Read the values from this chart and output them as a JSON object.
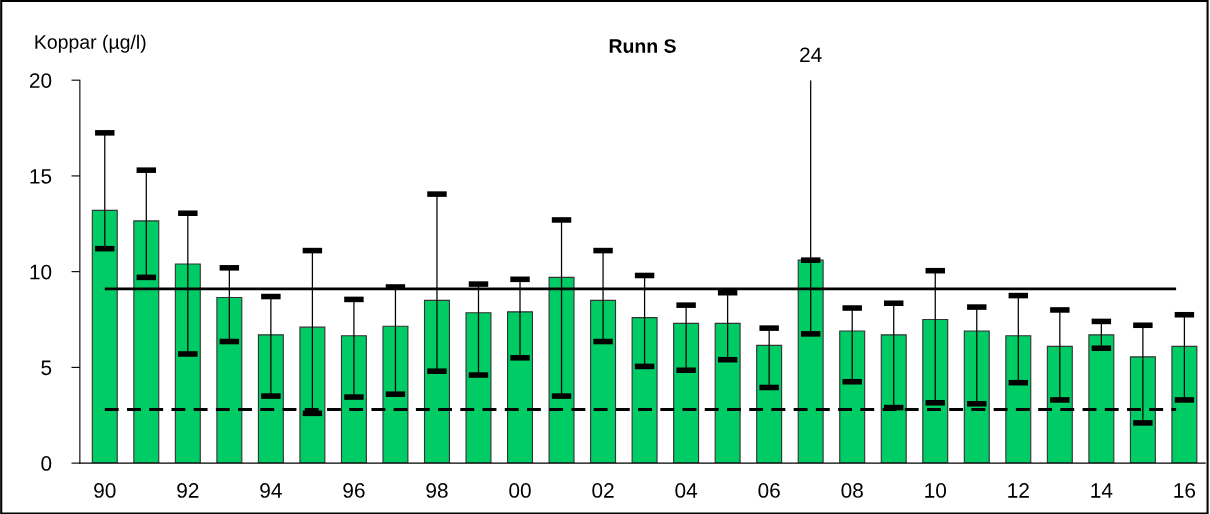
{
  "chart_data": {
    "type": "bar",
    "title": "Runn S",
    "ylabel": "Koppar (µg/l)",
    "categories": [
      "90",
      null,
      "92",
      null,
      "94",
      null,
      "96",
      null,
      "98",
      null,
      "00",
      null,
      "02",
      null,
      "04",
      null,
      "06",
      null,
      "08",
      null,
      "10",
      null,
      "12",
      null,
      "14",
      null,
      "16"
    ],
    "values": [
      13.2,
      12.65,
      10.4,
      8.65,
      6.7,
      7.1,
      6.65,
      7.15,
      8.5,
      7.85,
      7.9,
      9.7,
      8.5,
      7.6,
      7.3,
      7.3,
      6.15,
      10.6,
      6.9,
      6.7,
      7.5,
      6.9,
      6.65,
      6.1,
      6.7,
      5.55,
      6.1
    ],
    "errors": [
      [
        11.2,
        17.25
      ],
      [
        9.7,
        15.3
      ],
      [
        5.7,
        13.05
      ],
      [
        6.35,
        10.2
      ],
      [
        3.5,
        8.7
      ],
      [
        2.6,
        11.1
      ],
      [
        3.45,
        8.55
      ],
      [
        3.6,
        9.2
      ],
      [
        4.8,
        14.05
      ],
      [
        4.6,
        9.35
      ],
      [
        5.5,
        9.6
      ],
      [
        3.5,
        12.7
      ],
      [
        6.35,
        11.1
      ],
      [
        5.05,
        9.8
      ],
      [
        4.85,
        8.25
      ],
      [
        5.4,
        8.9
      ],
      [
        3.95,
        7.05
      ],
      [
        6.75,
        20
      ],
      [
        4.25,
        8.1
      ],
      [
        2.9,
        8.35
      ],
      [
        3.15,
        10.05
      ],
      [
        3.1,
        8.15
      ],
      [
        4.2,
        8.75
      ],
      [
        3.3,
        8.0
      ],
      [
        6.0,
        7.4
      ],
      [
        2.1,
        7.2
      ],
      [
        3.3,
        7.75
      ]
    ],
    "color": "#00cc66",
    "ylim": [
      0,
      20
    ],
    "yticks": [
      0,
      5,
      10,
      15,
      20
    ],
    "grid": false,
    "legend": false,
    "ref_lines": [
      {
        "axis": "y",
        "value": 9.1,
        "line_style": "solid",
        "color": "#000000"
      },
      {
        "axis": "y",
        "value": 2.8,
        "line_style": "dashed",
        "color": "#000000"
      }
    ],
    "annotations": [
      "24"
    ]
  }
}
